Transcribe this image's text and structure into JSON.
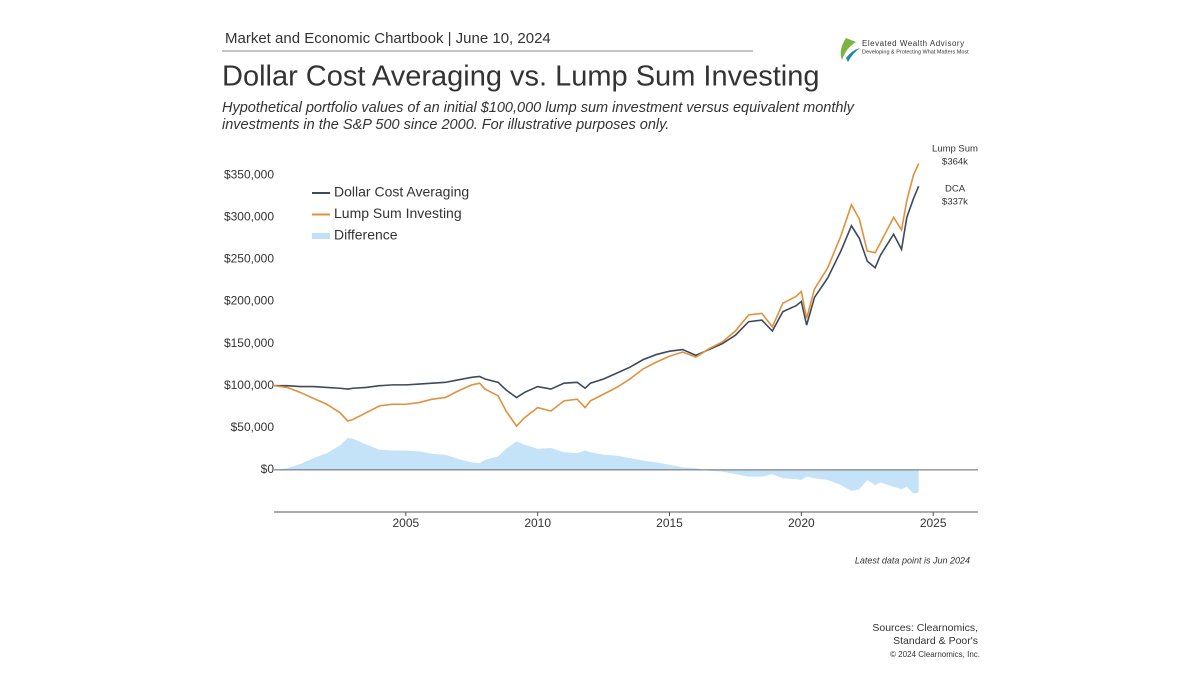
{
  "header": "Market and Economic Chartbook | June 10, 2024",
  "logo": {
    "name": "Elevated Wealth Advisory",
    "tagline": "Developing & Protecting What Matters Most"
  },
  "chart_data": {
    "type": "line",
    "title": "Dollar Cost Averaging vs. Lump Sum Investing",
    "subtitle": [
      "Hypothetical portfolio values of an initial $100,000 lump sum investment versus equivalent monthly",
      "investments in the S&P 500 since 2000. For illustrative purposes only."
    ],
    "x": [
      2000.0,
      2000.5,
      2001.0,
      2001.5,
      2002.0,
      2002.5,
      2002.8,
      2003.0,
      2003.5,
      2004.0,
      2004.5,
      2005.0,
      2005.5,
      2006.0,
      2006.5,
      2007.0,
      2007.5,
      2007.8,
      2008.0,
      2008.5,
      2008.8,
      2009.2,
      2009.5,
      2010.0,
      2010.5,
      2011.0,
      2011.5,
      2011.8,
      2012.0,
      2012.5,
      2013.0,
      2013.5,
      2014.0,
      2014.5,
      2015.0,
      2015.5,
      2016.0,
      2016.5,
      2017.0,
      2017.5,
      2018.0,
      2018.5,
      2018.9,
      2019.3,
      2019.8,
      2020.0,
      2020.2,
      2020.5,
      2021.0,
      2021.5,
      2021.9,
      2022.2,
      2022.5,
      2022.8,
      2023.0,
      2023.5,
      2023.8,
      2024.0,
      2024.25,
      2024.45
    ],
    "series": [
      {
        "name": "Dollar Cost Averaging",
        "color": "#3d4a5c",
        "kind": "line",
        "values": [
          100000,
          100000,
          99000,
          99000,
          98000,
          97000,
          96000,
          97000,
          98000,
          100000,
          101000,
          101000,
          102000,
          103000,
          104000,
          107000,
          110000,
          111000,
          108000,
          104000,
          95000,
          86000,
          92000,
          99000,
          96000,
          103000,
          104000,
          97000,
          103000,
          108000,
          115000,
          122000,
          131000,
          137000,
          141000,
          143000,
          136000,
          143000,
          150000,
          160000,
          176000,
          178000,
          165000,
          188000,
          195000,
          200000,
          172000,
          205000,
          228000,
          260000,
          290000,
          275000,
          248000,
          240000,
          255000,
          280000,
          262000,
          300000,
          322000,
          337000
        ]
      },
      {
        "name": "Lump Sum Investing",
        "color": "#e0913d",
        "kind": "line",
        "values": [
          100000,
          98000,
          92000,
          85000,
          78000,
          68000,
          58000,
          60000,
          68000,
          76000,
          78000,
          78000,
          80000,
          84000,
          86000,
          94000,
          101000,
          103000,
          96000,
          88000,
          70000,
          52000,
          62000,
          74000,
          70000,
          82000,
          84000,
          74000,
          82000,
          90000,
          98000,
          108000,
          120000,
          128000,
          135000,
          140000,
          134000,
          144000,
          152000,
          165000,
          184000,
          186000,
          170000,
          198000,
          206000,
          212000,
          180000,
          215000,
          240000,
          278000,
          315000,
          298000,
          260000,
          258000,
          270000,
          300000,
          285000,
          320000,
          350000,
          364000
        ]
      },
      {
        "name": "Difference",
        "color": "#bfe0f7",
        "kind": "area",
        "values": [
          0,
          2000,
          7000,
          14000,
          20000,
          29000,
          38000,
          37000,
          30000,
          24000,
          23000,
          23000,
          22000,
          19000,
          18000,
          13000,
          9000,
          8000,
          12000,
          16000,
          25000,
          34000,
          30000,
          25000,
          26000,
          21000,
          20000,
          23000,
          21000,
          18000,
          17000,
          14000,
          11000,
          9000,
          6000,
          3000,
          2000,
          -1000,
          -2000,
          -5000,
          -8000,
          -8000,
          -5000,
          -10000,
          -11000,
          -12000,
          -8000,
          -10000,
          -12000,
          -18000,
          -25000,
          -23000,
          -12000,
          -18000,
          -15000,
          -20000,
          -23000,
          -20000,
          -28000,
          -27000
        ]
      }
    ],
    "end_labels": [
      {
        "name": "Lump Sum",
        "label": "$364k"
      },
      {
        "name": "DCA",
        "label": "$337k"
      }
    ],
    "xlim": [
      2000,
      2026.7
    ],
    "xticks": [
      2005,
      2010,
      2015,
      2020,
      2025
    ],
    "ylim": [
      -50000,
      380000
    ],
    "yticks": [
      {
        "value": 0,
        "label": "$0"
      },
      {
        "value": 50000,
        "label": "$50,000"
      },
      {
        "value": 100000,
        "label": "$100,000"
      },
      {
        "value": 150000,
        "label": "$150,000"
      },
      {
        "value": 200000,
        "label": "$200,000"
      },
      {
        "value": 250000,
        "label": "$250,000"
      },
      {
        "value": 300000,
        "label": "$300,000"
      },
      {
        "value": 350000,
        "label": "$350,000"
      }
    ],
    "zero_line": true,
    "legend": "top-left",
    "note": "Latest data point is Jun 2024"
  },
  "sources": [
    "Sources: Clearnomics,",
    "Standard & Poor's"
  ],
  "copyright": "© 2024 Clearnomics, Inc."
}
